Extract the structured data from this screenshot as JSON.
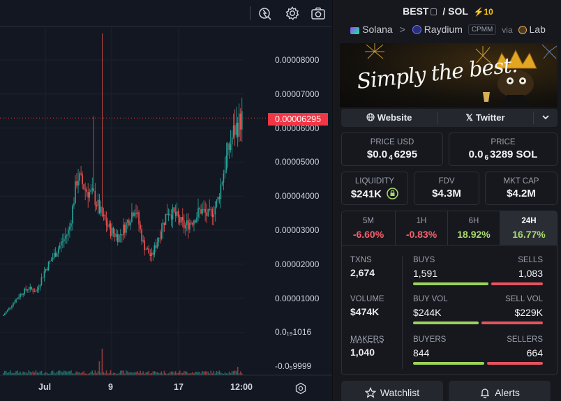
{
  "chart": {
    "current_price_label": "0.00006295",
    "y_ticks": [
      "0.00008000",
      "0.00007000",
      "0.00006000",
      "0.00005000",
      "0.00004000",
      "0.00003000",
      "0.00002000",
      "0.00001000",
      "0.0₁₉1016",
      "-0.0₅9999"
    ],
    "x_ticks": [
      "Jul",
      "9",
      "17",
      "12:00"
    ],
    "up_color": "#26a69a",
    "down_color": "#ef5350",
    "icons": [
      "indicator-icon",
      "settings-gear-icon",
      "camera-icon",
      "axis-settings-icon"
    ]
  },
  "chart_data": {
    "type": "candlestick",
    "y_axis_ticks": [
      "0.00008000",
      "0.00007000",
      "0.00006000",
      "0.00005000",
      "0.00004000",
      "0.00003000",
      "0.00002000",
      "0.00001000",
      "0.0₁₉1016",
      "-0.0₅9999"
    ],
    "x_axis_ticks": [
      "Jul",
      "9",
      "17",
      "12:00"
    ],
    "last_price": 6.295e-05,
    "close_trend": [
      5e-06,
      8e-06,
      1.1e-05,
      1.3e-05,
      1.2e-05,
      1.8e-05,
      2.2e-05,
      2.6e-05,
      3e-05,
      4.6e-05,
      4.2e-05,
      4e-05,
      3.4e-05,
      3e-05,
      2.8e-05,
      3.2e-05,
      3.7e-05,
      2.6e-05,
      2.2e-05,
      2.9e-05,
      3.6e-05,
      3.4e-05,
      3.1e-05,
      3.3e-05,
      3.6e-05,
      3.4e-05,
      3.8e-05,
      5e-05,
      5.9e-05,
      6.295e-05
    ],
    "highs_notable": {
      "max_wick": 8.78e-05
    }
  },
  "pair": {
    "base": "BEST",
    "slash": "/",
    "quote": "SOL",
    "boost": "⚡10",
    "chain": "Solana",
    "dex": "Raydium",
    "pool_type": "CPMM",
    "via": "via",
    "launchpad": "Lab"
  },
  "banner": {
    "text": "Simply the best."
  },
  "links": {
    "website": "Website",
    "twitter": "Twitter"
  },
  "prices": {
    "usd_label": "PRICE USD",
    "usd_value_pre": "$0.0",
    "usd_value_sub": "4",
    "usd_value_post": "6295",
    "native_label": "PRICE",
    "native_value_pre": "0.0",
    "native_value_sub": "6",
    "native_value_post": "3289 SOL"
  },
  "metrics": {
    "liquidity_label": "LIQUIDITY",
    "liquidity_value": "$241K",
    "fdv_label": "FDV",
    "fdv_value": "$4.3M",
    "mcap_label": "MKT CAP",
    "mcap_value": "$4.2M"
  },
  "timeframes": [
    {
      "label": "5M",
      "value": "-6.60%"
    },
    {
      "label": "1H",
      "value": "-0.83%"
    },
    {
      "label": "6H",
      "value": "18.92%"
    },
    {
      "label": "24H",
      "value": "16.77%"
    }
  ],
  "stats": {
    "txns_label": "TXNS",
    "txns_value": "2,674",
    "buys_label": "BUYS",
    "buys_value": "1,591",
    "sells_label": "SELLS",
    "sells_value": "1,083",
    "buys_ratio": 0.595,
    "volume_label": "VOLUME",
    "volume_value": "$474K",
    "buyvol_label": "BUY VOL",
    "buyvol_value": "$244K",
    "sellvol_label": "SELL VOL",
    "sellvol_value": "$229K",
    "buyvol_ratio": 0.516,
    "makers_label": "MAKERS",
    "makers_value": "1,040",
    "buyers_label": "BUYERS",
    "buyers_value": "844",
    "sellers_label": "SELLERS",
    "sellers_value": "664",
    "buyers_ratio": 0.56
  },
  "actions": {
    "watchlist": "Watchlist",
    "alerts": "Alerts"
  },
  "colors": {
    "positive": "#a8d96f",
    "negative": "#f4606c",
    "buy_bar": "#9bd35a",
    "sell_bar": "#e5535e"
  }
}
